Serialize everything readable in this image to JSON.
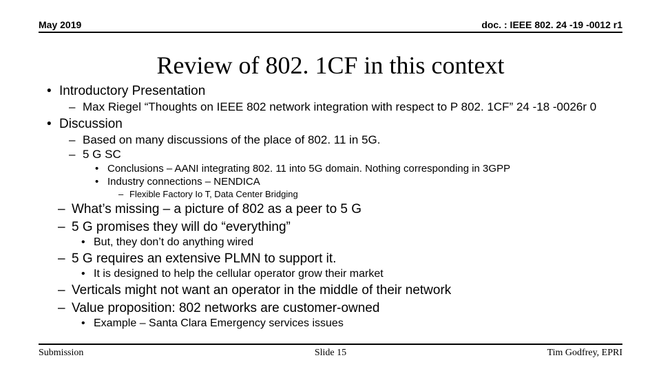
{
  "header": {
    "left": "May 2019",
    "right": "doc. : IEEE 802. 24 -19 -0012 r1"
  },
  "title": "Review of 802. 1CF in this context",
  "bullets": {
    "intro": "Introductory Presentation",
    "intro_sub": "Max Riegel  “Thoughts on IEEE 802 network integration with respect to P 802. 1CF”  24 -18 -0026r 0",
    "discussion": "Discussion",
    "disc_1": "Based on many discussions of the place of 802. 11 in 5G.",
    "disc_2": "5 G SC",
    "disc_2a": "Conclusions – AANI integrating 802. 11 into 5G domain.  Nothing corresponding in 3GPP",
    "disc_2b": "Industry connections – NENDICA",
    "disc_2b1": "Flexible Factory Io T, Data Center Bridging",
    "miss": "What’s missing – a picture of 802 as a peer to 5 G",
    "prom": "5 G promises they will do “everything”",
    "prom_a": "But, they don’t do anything wired",
    "plmn": "5 G requires an extensive PLMN to support it.",
    "plmn_a": "It is designed to help the cellular operator grow their market",
    "vert": "Verticals might not want an operator in the middle of their network",
    "valprop": "Value proposition: 802 networks are customer-owned",
    "example": "Example – Santa Clara Emergency services issues"
  },
  "footer": {
    "left": "Submission",
    "center": "Slide 15",
    "right": "Tim Godfrey, EPRI"
  }
}
